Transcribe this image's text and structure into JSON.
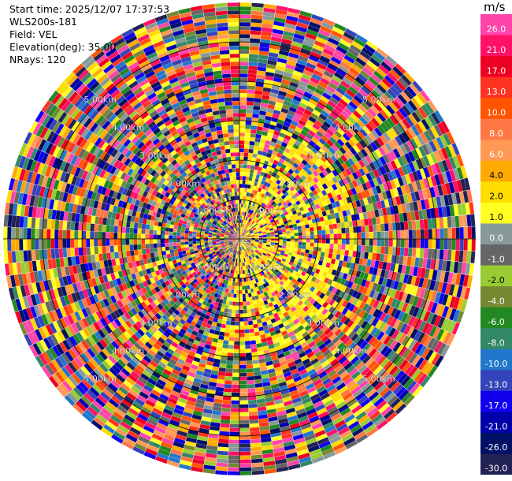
{
  "header": {
    "start_time": "Start time: 2025/12/07 17:37:53",
    "instrument": "WLS200s-181",
    "field": "Field: VEL",
    "elevation": "Elevation(deg): 35.00",
    "nrays": "NRays: 120"
  },
  "colorbar": {
    "unit": "m/s",
    "ticks": [
      "26.0",
      "21.0",
      "17.0",
      "13.0",
      "10.0",
      "8.0",
      "6.0",
      "4.0",
      "2.0",
      "1.0",
      "0.0",
      "-1.0",
      "-2.0",
      "-4.0",
      "-6.0",
      "-8.0",
      "-10.0",
      "-13.0",
      "-17.0",
      "-21.0",
      "-26.0",
      "-30.0"
    ],
    "colors": [
      "#ff44aa",
      "#ff1166",
      "#ee0022",
      "#ff3322",
      "#ff5500",
      "#ff7744",
      "#ff9955",
      "#ffaa00",
      "#ffdd00",
      "#ffff22",
      "#889999",
      "#666666",
      "#99cc33",
      "#778833",
      "#228822",
      "#338866",
      "#2277cc",
      "#3344bb",
      "#1100ee",
      "#0000aa",
      "#001166",
      "#222255"
    ]
  },
  "chart_data": {
    "type": "heatmap",
    "title": "",
    "field": "VEL",
    "units": "m/s",
    "elevation_deg": 35.0,
    "nrays": 120,
    "range_rings_km": [
      1.0,
      2.0,
      3.0,
      4.0,
      5.0
    ],
    "ring_labels": [
      "1.00km",
      "2.00km",
      "3.00km",
      "4.00km",
      "5.00km"
    ],
    "max_range_km": 6.0,
    "range_gate_km": 0.1,
    "value_range": [
      -30,
      26
    ]
  }
}
